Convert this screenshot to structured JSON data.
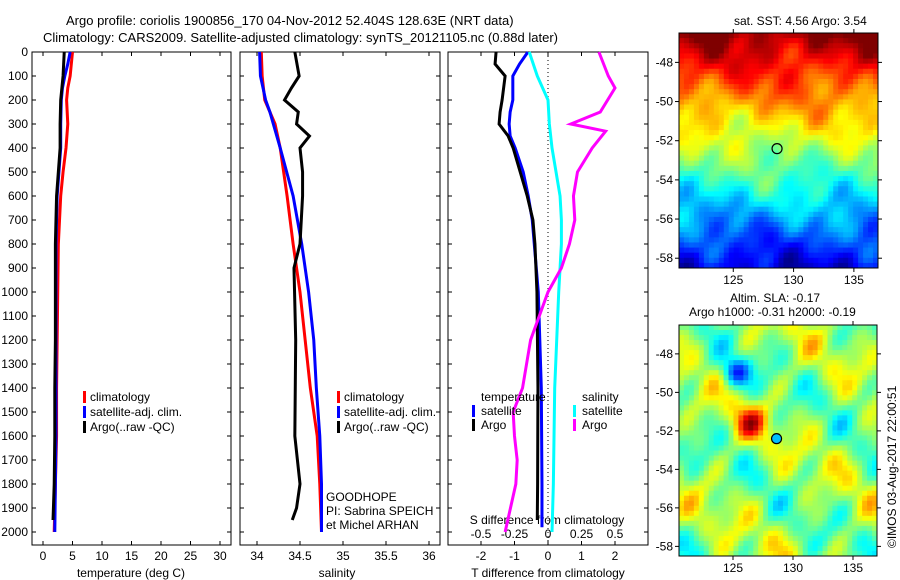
{
  "title": {
    "line1": "Argo profile: coriolis 1900856_170 04-Nov-2012 52.404S 128.63E (NRT data)",
    "line2": "Climatology: CARS2009. Satellite-adjusted climatology: synTS_20121105.nc (0.88d later)"
  },
  "chart_data": [
    {
      "type": "line",
      "title": "",
      "xlabel": "temperature (deg C)",
      "ylabel": "",
      "xlim": [
        -2,
        32
      ],
      "ylim": [
        2060,
        0
      ],
      "xticks": [
        "0",
        "5",
        "10",
        "15",
        "20",
        "25",
        "30"
      ],
      "yticks": [
        "0",
        "100",
        "200",
        "300",
        "400",
        "500",
        "600",
        "700",
        "800",
        "900",
        "1000",
        "1100",
        "1200",
        "1300",
        "1400",
        "1500",
        "1600",
        "1700",
        "1800",
        "1900",
        "2000"
      ],
      "legend": [
        "climatology",
        "satellite-adj. clim.",
        "Argo(..raw -QC)"
      ],
      "legend_position": "middle-center",
      "series": [
        {
          "name": "climatology",
          "color": "#ff0000",
          "depth": [
            0,
            50,
            100,
            150,
            200,
            300,
            400,
            500,
            600,
            700,
            800,
            1000,
            1200,
            1400,
            1600,
            1800,
            2000
          ],
          "values": [
            5.0,
            4.8,
            4.6,
            4.2,
            4.0,
            4.2,
            3.9,
            3.4,
            3.0,
            2.8,
            2.6,
            2.5,
            2.4,
            2.3,
            2.3,
            2.1,
            1.9
          ]
        },
        {
          "name": "satellite-adj. clim.",
          "color": "#0000ff",
          "depth": [
            0,
            50,
            100,
            150,
            200,
            300,
            400,
            500,
            600,
            700,
            800,
            1000,
            1200,
            1400,
            1600,
            1800,
            2000
          ],
          "values": [
            4.6,
            4.2,
            3.7,
            3.3,
            3.1,
            3.0,
            3.0,
            2.7,
            2.4,
            2.3,
            2.2,
            2.2,
            2.2,
            2.2,
            2.2,
            2.1,
            2.0
          ]
        },
        {
          "name": "Argo(..raw -QC)",
          "color": "#000000",
          "depth": [
            0,
            50,
            100,
            150,
            200,
            300,
            400,
            500,
            600,
            700,
            800,
            1000,
            1200,
            1400,
            1600,
            1800,
            1950
          ],
          "values": [
            3.6,
            3.5,
            3.4,
            3.2,
            3.0,
            2.9,
            2.9,
            2.6,
            2.3,
            2.2,
            2.1,
            2.1,
            2.1,
            2.0,
            2.0,
            1.9,
            1.7
          ]
        }
      ]
    },
    {
      "type": "line",
      "xlabel": "salinity",
      "xlim": [
        33.8,
        36.1
      ],
      "ylim": [
        2060,
        0
      ],
      "xticks": [
        "34",
        "34.5",
        "35",
        "35.5",
        "36"
      ],
      "legend": [
        "climatology",
        "satellite-adj. clim.",
        "Argo(..raw -QC)"
      ],
      "legend_position": "middle-right",
      "annotation": [
        "GOODHOPE",
        "PI: Sabrina SPEICH et Michel ARHAN"
      ],
      "series": [
        {
          "name": "climatology",
          "color": "#ff0000",
          "depth": [
            0,
            100,
            200,
            300,
            400,
            600,
            800,
            1000,
            1200,
            1400,
            1600,
            1800,
            2000
          ],
          "values": [
            34.05,
            34.06,
            34.09,
            34.21,
            34.27,
            34.35,
            34.42,
            34.5,
            34.56,
            34.62,
            34.7,
            34.73,
            34.75
          ]
        },
        {
          "name": "satellite-adj. clim.",
          "color": "#0000ff",
          "depth": [
            0,
            100,
            200,
            250,
            400,
            600,
            800,
            1000,
            1200,
            1400,
            1600,
            1800,
            2000
          ],
          "values": [
            34.03,
            34.04,
            34.1,
            34.15,
            34.27,
            34.42,
            34.52,
            34.6,
            34.66,
            34.69,
            34.73,
            34.75,
            34.75
          ]
        },
        {
          "name": "Argo(..raw -QC)",
          "color": "#000000",
          "depth": [
            0,
            100,
            150,
            200,
            250,
            300,
            350,
            400,
            500,
            600,
            800,
            900,
            1200,
            1600,
            1800,
            1900,
            1950
          ],
          "values": [
            34.44,
            34.49,
            34.4,
            34.32,
            34.48,
            34.46,
            34.61,
            34.5,
            34.53,
            34.53,
            34.5,
            34.43,
            34.45,
            34.44,
            34.5,
            34.46,
            34.41
          ]
        }
      ]
    },
    {
      "type": "line",
      "xlabel": "T difference from climatology",
      "xlim": [
        -3,
        3
      ],
      "xticks": [
        "-2",
        "-1",
        "0",
        "1",
        "2"
      ],
      "x2label": "S difference from climatology",
      "x2lim": [
        -0.75,
        0.75
      ],
      "x2ticks": [
        "-0.5",
        "-0.25",
        "0",
        "0.25",
        "0.5"
      ],
      "ylim": [
        2060,
        0
      ],
      "legend_groups": [
        {
          "title": "temperature",
          "items": [
            "satellite",
            "Argo"
          ]
        },
        {
          "title": "salinity",
          "items": [
            "satellite",
            "Argo"
          ]
        }
      ],
      "series": [
        {
          "name": "temperature satellite",
          "axis": "T",
          "color": "#0000ff",
          "depth": [
            0,
            50,
            100,
            200,
            250,
            300,
            350,
            400,
            500,
            600,
            700,
            1000,
            1400,
            1800,
            1980
          ],
          "values": [
            -0.6,
            -0.85,
            -1.05,
            -1.05,
            -1.13,
            -1.16,
            -1.13,
            -0.98,
            -0.74,
            -0.59,
            -0.47,
            -0.29,
            -0.2,
            -0.18,
            -0.18
          ]
        },
        {
          "name": "temperature Argo",
          "axis": "T",
          "color": "#000000",
          "depth": [
            0,
            50,
            100,
            200,
            250,
            300,
            350,
            400,
            500,
            600,
            700,
            800,
            1000,
            1400,
            1800,
            1950
          ],
          "values": [
            -1.55,
            -1.58,
            -1.28,
            -1.37,
            -1.43,
            -1.46,
            -1.19,
            -1.04,
            -0.83,
            -0.62,
            -0.45,
            -0.39,
            -0.33,
            -0.3,
            -0.31,
            -0.32
          ]
        },
        {
          "name": "salinity satellite",
          "axis": "S",
          "color": "#00ffff",
          "depth": [
            0,
            100,
            200,
            300,
            400,
            500,
            600,
            700,
            800,
            1000,
            1400,
            1800,
            2000
          ],
          "values": [
            -0.14,
            -0.08,
            0.0,
            0.01,
            0.03,
            0.06,
            0.09,
            0.1,
            0.1,
            0.08,
            0.05,
            0.04,
            0.03
          ]
        },
        {
          "name": "salinity Argo",
          "axis": "S",
          "color": "#ff00ff",
          "depth": [
            0,
            100,
            150,
            250,
            300,
            330,
            400,
            500,
            600,
            700,
            800,
            900,
            1000,
            1200,
            1400,
            1500,
            1600,
            1700,
            1800,
            1900,
            2000
          ],
          "values": [
            0.38,
            0.45,
            0.5,
            0.39,
            0.17,
            0.43,
            0.33,
            0.22,
            0.19,
            0.2,
            0.16,
            0.1,
            0.0,
            -0.13,
            -0.19,
            -0.26,
            -0.25,
            -0.23,
            -0.24,
            -0.28,
            -0.32
          ]
        }
      ]
    },
    {
      "type": "heatmap",
      "title": "sat. SST: 4.56 Argo: 3.54",
      "xlim": [
        120.5,
        137
      ],
      "ylim": [
        -58.5,
        -46.5
      ],
      "xticks": [
        "125",
        "130",
        "135"
      ],
      "yticks": [
        "-48",
        "-50",
        "-52",
        "-54",
        "-56",
        "-58"
      ],
      "marker": {
        "lon": 128.63,
        "lat": -52.404
      }
    },
    {
      "type": "heatmap",
      "title": "Altim. SLA: -0.17",
      "subtitle": "Argo h1000: -0.31 h2000: -0.19",
      "xlim": [
        120.5,
        137
      ],
      "ylim": [
        -58.5,
        -46.5
      ],
      "xticks": [
        "125",
        "130",
        "135"
      ],
      "yticks": [
        "-48",
        "-50",
        "-52",
        "-54",
        "-56",
        "-58"
      ],
      "marker": {
        "lon": 128.63,
        "lat": -52.404
      }
    }
  ],
  "credit": "©IMOS 03-Aug-2017 22:00:51"
}
